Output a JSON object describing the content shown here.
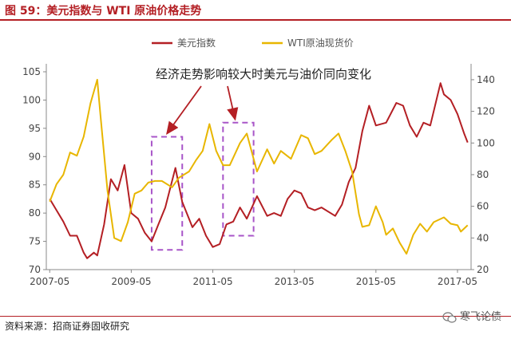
{
  "header": {
    "title": "图 59：美元指数与 WTI 原油价格走势"
  },
  "footer": {
    "source": "资料来源：招商证券固收研究",
    "watermark": "寒飞论债"
  },
  "colors": {
    "usd": "#b41f24",
    "wti": "#e8b600",
    "box": "#a855c8",
    "accent": "#b41f24"
  },
  "chart_data": {
    "type": "line",
    "title": "",
    "legend_position": "top-center",
    "grid": false,
    "annotation": "经济走势影响较大时美元与油价同向变化",
    "x_ticks": [
      "2007-05",
      "2009-05",
      "2011-05",
      "2013-05",
      "2015-05",
      "2017-05"
    ],
    "x_range": [
      "2007-05",
      "2017-08"
    ],
    "y_left": {
      "ticks": [
        70,
        75,
        80,
        85,
        90,
        95,
        100,
        105
      ],
      "range": [
        70,
        105
      ]
    },
    "y_right": {
      "ticks": [
        20,
        40,
        60,
        80,
        100,
        120,
        140
      ],
      "range": [
        20,
        145
      ]
    },
    "series": [
      {
        "name": "美元指数",
        "axis": "left",
        "color": "#b41f24",
        "points": [
          [
            "2007-05",
            82.5
          ],
          [
            "2007-07",
            80.5
          ],
          [
            "2007-09",
            78.5
          ],
          [
            "2007-11",
            76.0
          ],
          [
            "2008-01",
            76.0
          ],
          [
            "2008-03",
            73.0
          ],
          [
            "2008-04",
            72.0
          ],
          [
            "2008-06",
            73.0
          ],
          [
            "2008-07",
            72.5
          ],
          [
            "2008-09",
            78.0
          ],
          [
            "2008-11",
            86.0
          ],
          [
            "2009-01",
            84.0
          ],
          [
            "2009-03",
            88.5
          ],
          [
            "2009-05",
            80.0
          ],
          [
            "2009-07",
            79.0
          ],
          [
            "2009-09",
            76.5
          ],
          [
            "2009-11",
            75.0
          ],
          [
            "2010-01",
            78.0
          ],
          [
            "2010-03",
            81.0
          ],
          [
            "2010-06",
            88.0
          ],
          [
            "2010-08",
            82.0
          ],
          [
            "2010-11",
            77.5
          ],
          [
            "2011-01",
            79.0
          ],
          [
            "2011-03",
            76.0
          ],
          [
            "2011-05",
            74.0
          ],
          [
            "2011-07",
            74.5
          ],
          [
            "2011-09",
            78.0
          ],
          [
            "2011-11",
            78.5
          ],
          [
            "2012-01",
            81.0
          ],
          [
            "2012-03",
            79.0
          ],
          [
            "2012-06",
            83.0
          ],
          [
            "2012-09",
            79.5
          ],
          [
            "2012-11",
            80.0
          ],
          [
            "2013-01",
            79.5
          ],
          [
            "2013-03",
            82.5
          ],
          [
            "2013-05",
            84.0
          ],
          [
            "2013-07",
            83.5
          ],
          [
            "2013-09",
            81.0
          ],
          [
            "2013-11",
            80.5
          ],
          [
            "2014-01",
            81.0
          ],
          [
            "2014-05",
            79.5
          ],
          [
            "2014-07",
            81.5
          ],
          [
            "2014-09",
            85.5
          ],
          [
            "2014-11",
            88.0
          ],
          [
            "2015-01",
            94.5
          ],
          [
            "2015-03",
            99.0
          ],
          [
            "2015-05",
            95.5
          ],
          [
            "2015-08",
            96.0
          ],
          [
            "2015-11",
            99.5
          ],
          [
            "2016-01",
            99.0
          ],
          [
            "2016-03",
            95.5
          ],
          [
            "2016-05",
            93.5
          ],
          [
            "2016-07",
            96.0
          ],
          [
            "2016-09",
            95.5
          ],
          [
            "2016-12",
            103.0
          ],
          [
            "2017-01",
            101.0
          ],
          [
            "2017-03",
            100.0
          ],
          [
            "2017-05",
            97.5
          ],
          [
            "2017-07",
            94.0
          ],
          [
            "2017-08",
            92.5
          ]
        ]
      },
      {
        "name": "WTI原油现货价",
        "axis": "right",
        "color": "#e8b600",
        "points": [
          [
            "2007-05",
            63
          ],
          [
            "2007-07",
            74
          ],
          [
            "2007-09",
            80
          ],
          [
            "2007-11",
            94
          ],
          [
            "2008-01",
            92
          ],
          [
            "2008-03",
            104
          ],
          [
            "2008-05",
            125
          ],
          [
            "2008-07",
            140
          ],
          [
            "2008-08",
            116
          ],
          [
            "2008-10",
            70
          ],
          [
            "2008-12",
            40
          ],
          [
            "2009-02",
            38
          ],
          [
            "2009-04",
            50
          ],
          [
            "2009-06",
            68
          ],
          [
            "2009-08",
            70
          ],
          [
            "2009-10",
            75
          ],
          [
            "2009-12",
            76
          ],
          [
            "2010-02",
            76
          ],
          [
            "2010-05",
            72
          ],
          [
            "2010-07",
            78
          ],
          [
            "2010-10",
            82
          ],
          [
            "2010-12",
            89
          ],
          [
            "2011-02",
            95
          ],
          [
            "2011-04",
            112
          ],
          [
            "2011-06",
            95
          ],
          [
            "2011-08",
            86
          ],
          [
            "2011-10",
            86
          ],
          [
            "2012-01",
            100
          ],
          [
            "2012-03",
            106
          ],
          [
            "2012-06",
            82
          ],
          [
            "2012-09",
            96
          ],
          [
            "2012-11",
            87
          ],
          [
            "2013-01",
            95
          ],
          [
            "2013-04",
            90
          ],
          [
            "2013-07",
            105
          ],
          [
            "2013-09",
            103
          ],
          [
            "2013-11",
            93
          ],
          [
            "2014-01",
            95
          ],
          [
            "2014-04",
            102
          ],
          [
            "2014-06",
            106
          ],
          [
            "2014-08",
            95
          ],
          [
            "2014-10",
            82
          ],
          [
            "2014-12",
            55
          ],
          [
            "2015-01",
            47
          ],
          [
            "2015-03",
            48
          ],
          [
            "2015-05",
            60
          ],
          [
            "2015-07",
            50
          ],
          [
            "2015-08",
            42
          ],
          [
            "2015-10",
            46
          ],
          [
            "2015-12",
            37
          ],
          [
            "2016-02",
            30
          ],
          [
            "2016-04",
            42
          ],
          [
            "2016-06",
            49
          ],
          [
            "2016-08",
            44
          ],
          [
            "2016-10",
            50
          ],
          [
            "2016-12",
            52
          ],
          [
            "2017-01",
            53
          ],
          [
            "2017-03",
            49
          ],
          [
            "2017-05",
            48
          ],
          [
            "2017-06",
            44
          ],
          [
            "2017-08",
            48
          ]
        ]
      }
    ],
    "highlight_boxes": [
      {
        "x_start": "2009-11",
        "x_end": "2010-08",
        "axis": "left",
        "y_min": 73.5,
        "y_max": 93.5
      },
      {
        "x_start": "2011-08",
        "x_end": "2012-05",
        "axis": "left",
        "y_min": 76.0,
        "y_max": 96.0
      }
    ]
  }
}
